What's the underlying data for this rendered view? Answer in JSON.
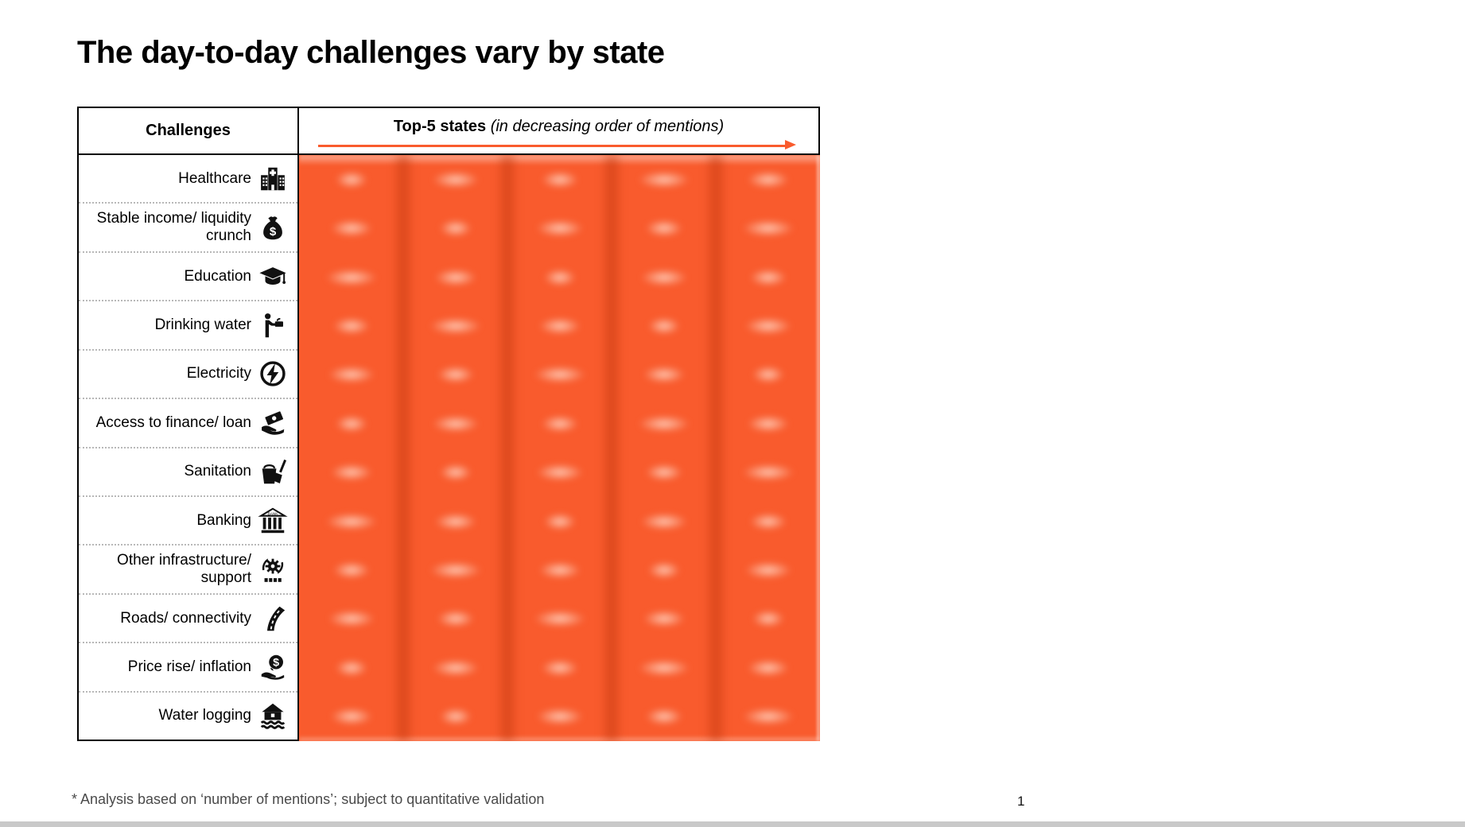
{
  "title": "The day-to-day challenges vary by state",
  "table": {
    "header": {
      "challenges_label": "Challenges",
      "states_label_bold": "Top-5 states",
      "states_label_italic": " (in decreasing order of mentions)"
    },
    "rows": [
      {
        "label": "Healthcare",
        "icon": "hospital-icon"
      },
      {
        "label": "Stable income/ liquidity crunch",
        "icon": "money-bag-icon"
      },
      {
        "label": "Education",
        "icon": "graduation-cap-icon"
      },
      {
        "label": "Drinking water",
        "icon": "drinking-fountain-icon"
      },
      {
        "label": "Electricity",
        "icon": "electricity-icon"
      },
      {
        "label": "Access to finance/ loan",
        "icon": "hand-banknote-icon"
      },
      {
        "label": "Sanitation",
        "icon": "bucket-broom-icon"
      },
      {
        "label": "Banking",
        "icon": "bank-building-icon"
      },
      {
        "label": "Other infrastructure/ support",
        "icon": "gear-arrows-icon"
      },
      {
        "label": "Roads/ connectivity",
        "icon": "road-icon"
      },
      {
        "label": "Price rise/ inflation",
        "icon": "coin-hand-icon"
      },
      {
        "label": "Water logging",
        "icon": "flooded-house-icon"
      }
    ],
    "states_columns": 5,
    "states_redacted": true
  },
  "colors": {
    "accent_orange": "#F95B2D",
    "column_band_dark": "#C1380E",
    "blob_light": "#FFCDB9",
    "footer_bar_gray": "#C9C9C9"
  },
  "footnote": "* Analysis based on ‘number of mentions’; subject to quantitative validation",
  "page_number": "1"
}
